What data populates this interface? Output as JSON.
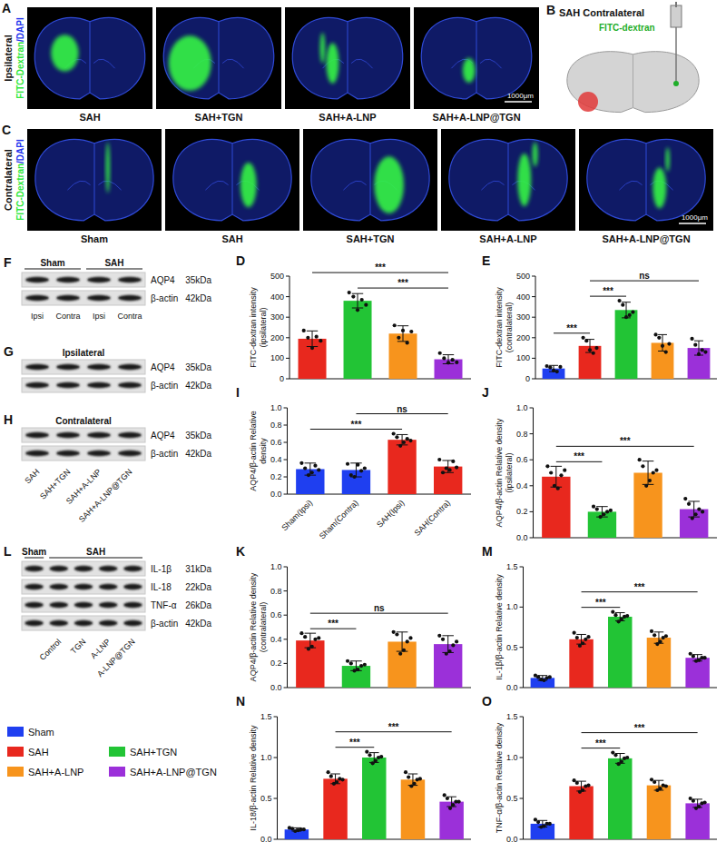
{
  "chart_data": [
    {
      "panel": "D",
      "type": "bar",
      "y_label": "FITC-dextran intensity (ipsilateral)",
      "categories": [
        null,
        null,
        null,
        null
      ],
      "tick_labels": "y",
      "values": [
        195,
        380,
        220,
        95
      ],
      "errors": [
        38,
        35,
        38,
        22
      ],
      "points": [
        [
          235,
          200,
          150,
          205,
          185
        ],
        [
          420,
          400,
          335,
          385,
          360
        ],
        [
          260,
          200,
          235,
          175,
          230
        ],
        [
          125,
          100,
          78,
          92,
          80
        ]
      ],
      "colors": [
        "#e8281e",
        "#22c435",
        "#f7941d",
        "#9b30d9"
      ],
      "ylim": [
        0,
        500
      ],
      "yticks": [
        0,
        100,
        200,
        300,
        400,
        500
      ],
      "annotations": [
        {
          "from": 1,
          "to": 3,
          "label": "***"
        },
        {
          "from": 0,
          "to": 3,
          "label": "***"
        }
      ]
    },
    {
      "panel": "E",
      "type": "bar",
      "y_label": "FITC-dextran intensity (contralateral)",
      "categories": [
        null,
        null,
        null,
        null,
        null
      ],
      "tick_labels": "y",
      "values": [
        50,
        160,
        335,
        175,
        150
      ],
      "errors": [
        15,
        32,
        38,
        40,
        35
      ],
      "points": [
        [
          62,
          55,
          40,
          35,
          58
        ],
        [
          200,
          185,
          140,
          125,
          150
        ],
        [
          380,
          360,
          300,
          310,
          325
        ],
        [
          215,
          200,
          160,
          130,
          170
        ],
        [
          195,
          165,
          120,
          140,
          130
        ]
      ],
      "colors": [
        "#1f3ff0",
        "#e8281e",
        "#22c435",
        "#f7941d",
        "#9b30d9"
      ],
      "ylim": [
        0,
        500
      ],
      "yticks": [
        0,
        100,
        200,
        300,
        400,
        500
      ],
      "annotations": [
        {
          "from": 0,
          "to": 1,
          "label": "***"
        },
        {
          "from": 1,
          "to": 2,
          "label": "***"
        },
        {
          "from": 1,
          "to": 4,
          "label": "ns"
        }
      ]
    },
    {
      "panel": "I",
      "type": "bar",
      "y_label": "AQP4/β-actin Relative density",
      "categories": [
        "Sham(Ipsi)",
        "Sham(Contra)",
        "SAH(Ipsi)",
        "SAH(Contra)"
      ],
      "values": [
        0.29,
        0.28,
        0.63,
        0.32
      ],
      "errors": [
        0.07,
        0.08,
        0.06,
        0.07
      ],
      "points": [
        [
          0.36,
          0.3,
          0.22,
          0.25,
          0.33,
          0.28
        ],
        [
          0.35,
          0.22,
          0.2,
          0.34,
          0.27,
          0.3
        ],
        [
          0.7,
          0.66,
          0.56,
          0.6,
          0.64,
          0.62
        ],
        [
          0.4,
          0.25,
          0.3,
          0.28,
          0.38,
          0.31
        ]
      ],
      "colors": [
        "#1f3ff0",
        "#1f3ff0",
        "#e8281e",
        "#e8281e"
      ],
      "ylim": [
        0,
        1
      ],
      "yticks": [
        {
          "value": 0,
          "label": "0.0"
        },
        0.2,
        0.4,
        0.6,
        0.8,
        {
          "value": 1,
          "label": "1.0"
        }
      ],
      "annotations": [
        {
          "from": 0,
          "to": 2,
          "label": "***"
        },
        {
          "from": 1,
          "to": 3,
          "label": "ns"
        }
      ]
    },
    {
      "panel": "J",
      "type": "bar",
      "y_label": "AQP4/β-actin Relative density (ipsilateral)",
      "categories": [
        null,
        null,
        null,
        null
      ],
      "tick_labels": "y",
      "values": [
        0.47,
        0.2,
        0.5,
        0.22
      ],
      "errors": [
        0.08,
        0.04,
        0.09,
        0.06
      ],
      "points": [
        [
          0.55,
          0.5,
          0.4,
          0.38,
          0.48,
          0.52
        ],
        [
          0.24,
          0.22,
          0.16,
          0.18,
          0.2,
          0.21
        ],
        [
          0.6,
          0.55,
          0.4,
          0.44,
          0.5,
          0.52
        ],
        [
          0.3,
          0.26,
          0.15,
          0.18,
          0.22,
          0.2
        ]
      ],
      "colors": [
        "#e8281e",
        "#22c435",
        "#f7941d",
        "#9b30d9"
      ],
      "ylim": [
        0,
        1
      ],
      "yticks": [
        {
          "value": 0,
          "label": "0.0"
        },
        0.2,
        0.4,
        0.6,
        0.8,
        {
          "value": 1,
          "label": "1.0"
        }
      ],
      "annotations": [
        {
          "from": 0,
          "to": 1,
          "label": "***"
        },
        {
          "from": 0,
          "to": 3,
          "label": "***"
        }
      ]
    },
    {
      "panel": "K",
      "type": "bar",
      "y_label": "AQP4/β-actin Relative density (contralateral)",
      "categories": [
        null,
        null,
        null,
        null
      ],
      "tick_labels": "y",
      "values": [
        0.39,
        0.18,
        0.38,
        0.36
      ],
      "errors": [
        0.06,
        0.04,
        0.08,
        0.07
      ],
      "points": [
        [
          0.45,
          0.42,
          0.32,
          0.34,
          0.4,
          0.41
        ],
        [
          0.22,
          0.2,
          0.14,
          0.15,
          0.18,
          0.19
        ],
        [
          0.46,
          0.44,
          0.28,
          0.31,
          0.38,
          0.41
        ],
        [
          0.43,
          0.4,
          0.28,
          0.3,
          0.35,
          0.38
        ]
      ],
      "colors": [
        "#e8281e",
        "#22c435",
        "#f7941d",
        "#9b30d9"
      ],
      "ylim": [
        0,
        1
      ],
      "yticks": [
        {
          "value": 0,
          "label": "0.0"
        },
        0.2,
        0.4,
        0.6,
        0.8,
        {
          "value": 1,
          "label": "1.0"
        }
      ],
      "annotations": [
        {
          "from": 0,
          "to": 1,
          "label": "***"
        },
        {
          "from": 0,
          "to": 3,
          "label": "ns"
        }
      ]
    },
    {
      "panel": "M",
      "type": "bar",
      "y_label": "IL-1β/β-actin Relative density",
      "categories": [
        null,
        null,
        null,
        null,
        null
      ],
      "tick_labels": "y",
      "values": [
        0.12,
        0.6,
        0.88,
        0.62,
        0.37
      ],
      "errors": [
        0.03,
        0.06,
        0.05,
        0.07,
        0.04
      ],
      "points": [
        [
          0.15,
          0.13,
          0.1,
          0.09,
          0.12,
          0.13
        ],
        [
          0.68,
          0.62,
          0.52,
          0.55,
          0.6,
          0.63
        ],
        [
          0.94,
          0.9,
          0.82,
          0.85,
          0.88,
          0.89
        ],
        [
          0.7,
          0.65,
          0.54,
          0.57,
          0.62,
          0.64
        ],
        [
          0.42,
          0.39,
          0.33,
          0.34,
          0.37,
          0.37
        ]
      ],
      "colors": [
        "#1f3ff0",
        "#e8281e",
        "#22c435",
        "#f7941d",
        "#9b30d9"
      ],
      "ylim": [
        0,
        1.5
      ],
      "yticks": [
        {
          "value": 0,
          "label": "0.0"
        },
        0.5,
        {
          "value": 1,
          "label": "1.0"
        },
        1.5
      ],
      "annotations": [
        {
          "from": 1,
          "to": 2,
          "label": "***"
        },
        {
          "from": 1,
          "to": 4,
          "label": "***"
        }
      ]
    },
    {
      "panel": "N",
      "type": "bar",
      "y_label": "IL-18/β-actin Relative density",
      "categories": [
        null,
        null,
        null,
        null,
        null
      ],
      "tick_labels": "y",
      "values": [
        0.12,
        0.74,
        1.0,
        0.73,
        0.46
      ],
      "errors": [
        0.02,
        0.06,
        0.06,
        0.07,
        0.06
      ],
      "points": [
        [
          0.14,
          0.13,
          0.1,
          0.11,
          0.12,
          0.12
        ],
        [
          0.82,
          0.77,
          0.68,
          0.7,
          0.74,
          0.73
        ],
        [
          1.07,
          1.03,
          0.93,
          0.96,
          1.0,
          1.01
        ],
        [
          0.82,
          0.76,
          0.65,
          0.68,
          0.73,
          0.74
        ],
        [
          0.54,
          0.5,
          0.38,
          0.42,
          0.46,
          0.46
        ]
      ],
      "colors": [
        "#1f3ff0",
        "#e8281e",
        "#22c435",
        "#f7941d",
        "#9b30d9"
      ],
      "ylim": [
        0,
        1.5
      ],
      "yticks": [
        {
          "value": 0,
          "label": "0.0"
        },
        0.5,
        {
          "value": 1,
          "label": "1.0"
        },
        1.5
      ],
      "annotations": [
        {
          "from": 1,
          "to": 2,
          "label": "***"
        },
        {
          "from": 1,
          "to": 4,
          "label": "***"
        }
      ]
    },
    {
      "panel": "O",
      "type": "bar",
      "y_label": "TNF-α/β-actin Relative density",
      "categories": [
        null,
        null,
        null,
        null,
        null
      ],
      "tick_labels": "y",
      "values": [
        0.19,
        0.65,
        0.99,
        0.66,
        0.44
      ],
      "errors": [
        0.04,
        0.06,
        0.06,
        0.06,
        0.05
      ],
      "points": [
        [
          0.24,
          0.21,
          0.15,
          0.16,
          0.19,
          0.19
        ],
        [
          0.72,
          0.69,
          0.58,
          0.6,
          0.65,
          0.66
        ],
        [
          1.06,
          1.03,
          0.92,
          0.95,
          0.99,
          1.0
        ],
        [
          0.73,
          0.7,
          0.6,
          0.62,
          0.66,
          0.65
        ],
        [
          0.5,
          0.47,
          0.38,
          0.4,
          0.44,
          0.45
        ]
      ],
      "colors": [
        "#1f3ff0",
        "#e8281e",
        "#22c435",
        "#f7941d",
        "#9b30d9"
      ],
      "ylim": [
        0,
        1.5
      ],
      "yticks": [
        {
          "value": 0,
          "label": "0.0"
        },
        0.5,
        {
          "value": 1,
          "label": "1.0"
        },
        1.5
      ],
      "annotations": [
        {
          "from": 1,
          "to": 2,
          "label": "***"
        },
        {
          "from": 1,
          "to": 4,
          "label": "***"
        }
      ]
    }
  ],
  "image_rows": [
    {
      "panel": "A",
      "row_label": "Ipsilateral",
      "channel_label": [
        {
          "text": "FITC-Dextran",
          "color": "#2ee83a"
        },
        {
          "text": "/DAPI",
          "color": "#2233ee"
        }
      ],
      "labels": [
        "SAH",
        "SAH+TGN",
        "SAH+A-LNP",
        "SAH+A-LNP@TGN"
      ],
      "scale_bar": "1000μm"
    },
    {
      "panel": "C",
      "row_label": "Contralateral",
      "channel_label": [
        {
          "text": "FITC-Dextran",
          "color": "#2ee83a"
        },
        {
          "text": "/DAPI",
          "color": "#2233ee"
        }
      ],
      "labels": [
        "Sham",
        "SAH",
        "SAH+TGN",
        "SAH+A-LNP",
        "SAH+A-LNP@TGN"
      ],
      "scale_bar": "1000μm"
    }
  ],
  "schematic": {
    "panel": "B",
    "title": "SAH Contralateral",
    "tracer": "FITC-dextran",
    "tracer_color": "#1fae2a"
  },
  "blots": [
    {
      "panel": "F",
      "groups": [
        {
          "label": "Sham",
          "first": 0,
          "last": 1
        },
        {
          "label": "SAH",
          "first": 2,
          "last": 3
        }
      ],
      "rows": [
        {
          "protein": "AQP4",
          "size": "35kDa"
        },
        {
          "protein": "β-actin",
          "size": "42kDa"
        }
      ],
      "lanes": [
        "Ipsi",
        "Contra",
        "Ipsi",
        "Contra"
      ]
    },
    {
      "panel": "G",
      "title": "Ipsilateral",
      "rows": [
        {
          "protein": "AQP4",
          "size": "35kDa"
        },
        {
          "protein": "β-actin",
          "size": "42kDa"
        }
      ],
      "lanes": [
        null,
        null,
        null,
        null
      ]
    },
    {
      "panel": "H",
      "title": "Contralateral",
      "rows": [
        {
          "protein": "AQP4",
          "size": "35kDa"
        },
        {
          "protein": "β-actin",
          "size": "42kDa"
        }
      ],
      "lanes": [
        "SAH",
        "SAH+TGN",
        "SAH+A-LNP",
        "SAH+A-LNP@TGN"
      ]
    },
    {
      "panel": "L",
      "groups": [
        {
          "label": "Sham",
          "first": 0,
          "last": 0
        },
        {
          "label": "SAH",
          "first": 1,
          "last": 4
        }
      ],
      "rows": [
        {
          "protein": "IL-1β",
          "size": "31kDa"
        },
        {
          "protein": "IL-18",
          "size": "22kDa"
        },
        {
          "protein": "TNF-α",
          "size": "26kDa"
        },
        {
          "protein": "β-actin",
          "size": "42kDa"
        }
      ],
      "lanes": [
        null,
        "Control",
        "TGN",
        "A-LNP",
        "A-LNP@TGN"
      ]
    }
  ],
  "shared_legend": [
    {
      "name": "Sham",
      "color": "#1f3ff0"
    },
    {
      "name": "SAH",
      "color": "#e8281e"
    },
    {
      "name": "SAH+TGN",
      "color": "#22c435"
    },
    {
      "name": "SAH+A-LNP",
      "color": "#f7941d"
    },
    {
      "name": "SAH+A-LNP@TGN",
      "color": "#9b30d9"
    }
  ]
}
